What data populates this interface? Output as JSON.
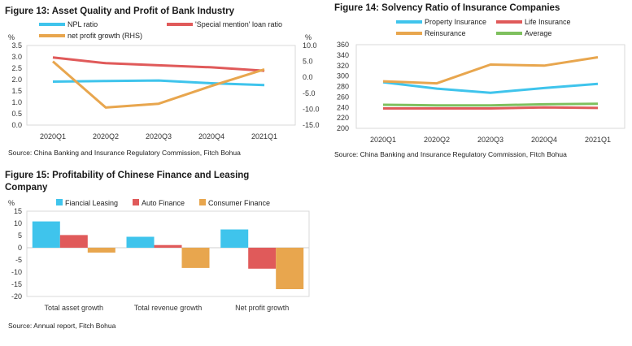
{
  "chart_data": [
    {
      "type": "line",
      "title": "Figure 13: Asset Quality and Profit of Bank Industry",
      "left_unit": "%",
      "right_unit": "%",
      "categories": [
        "2020Q1",
        "2020Q2",
        "2020Q3",
        "2020Q4",
        "2021Q1"
      ],
      "ylim": [
        0,
        3.5
      ],
      "yticks": [
        "3.5",
        "3.0",
        "2.5",
        "2.0",
        "1.5",
        "1.0",
        "0.5",
        "0.0"
      ],
      "y2lim": [
        -15,
        10
      ],
      "y2ticks": [
        "10.0",
        "5.0",
        "0.0",
        "-5.0",
        "-10.0",
        "-15.0"
      ],
      "series": [
        {
          "name": "NPL ratio",
          "axis": "left",
          "color": "#3fc4ec",
          "values": [
            1.91,
            1.94,
            1.96,
            1.84,
            1.76
          ]
        },
        {
          "name": "'Special mention' loan ratio",
          "axis": "left",
          "color": "#e05a5a",
          "values": [
            2.97,
            2.72,
            2.63,
            2.54,
            2.39
          ]
        },
        {
          "name": "net profit growth (RHS)",
          "axis": "right",
          "color": "#e8a64e",
          "values": [
            5.0,
            -9.5,
            -8.3,
            -2.7,
            2.5
          ]
        }
      ],
      "source": "Source: China Banking and Insurance Regulatory Commission, Fitch Bohua"
    },
    {
      "type": "line",
      "title": "Figure 14: Solvency Ratio of  Insurance Companies",
      "categories": [
        "2020Q1",
        "2020Q2",
        "2020Q3",
        "2020Q4",
        "2021Q1"
      ],
      "ylim": [
        200,
        360
      ],
      "yticks": [
        "360",
        "340",
        "320",
        "300",
        "280",
        "260",
        "240",
        "220",
        "200"
      ],
      "series": [
        {
          "name": "Property Insurance",
          "color": "#3fc4ec",
          "values": [
            288,
            276,
            268,
            277,
            285
          ]
        },
        {
          "name": "Life Insurance",
          "color": "#e05a5a",
          "values": [
            238,
            238,
            238,
            240,
            239
          ]
        },
        {
          "name": "Reinsurance",
          "color": "#e8a64e",
          "values": [
            290,
            286,
            322,
            320,
            336
          ]
        },
        {
          "name": "Average",
          "color": "#7ec05e",
          "values": [
            245,
            244,
            244,
            246,
            247
          ]
        }
      ],
      "source": "Source: China Banking and Insurance Regulatory Commission, Fitch Bohua"
    },
    {
      "type": "bar",
      "title_line1": "Figure 15: Profitability of Chinese Finance and Leasing",
      "title_line2": "Company",
      "unit": "%",
      "categories": [
        "Total asset growth",
        "Total revenue growth",
        "Net profit growth"
      ],
      "ylim": [
        -20,
        15
      ],
      "yticks": [
        "15",
        "10",
        "5",
        "0",
        "-5",
        "-10",
        "-15",
        "-20"
      ],
      "series": [
        {
          "name": "Fiancial Leasing",
          "color": "#3fc4ec",
          "values": [
            10.8,
            4.5,
            7.5
          ]
        },
        {
          "name": "Auto Finance",
          "color": "#e05a5a",
          "values": [
            5.2,
            1.1,
            -8.6
          ]
        },
        {
          "name": "Consumer Finance",
          "color": "#e8a64e",
          "values": [
            -2.0,
            -8.3,
            -17.0
          ]
        }
      ],
      "source": "Source: Annual report, Fitch Bohua"
    }
  ]
}
